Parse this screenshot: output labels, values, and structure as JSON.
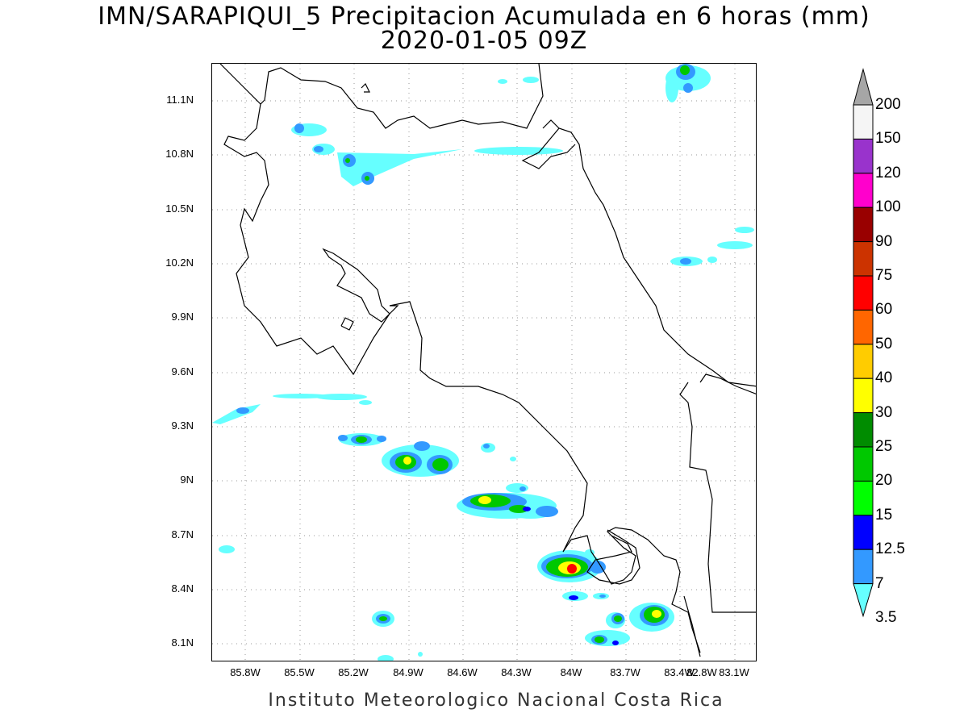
{
  "title": {
    "line1": "IMN/SARAPIQUI_5 Precipitacion Acumulada en 6 horas (mm)",
    "line2": "2020-01-05 09Z"
  },
  "axes": {
    "y_ticks": [
      "11.1N",
      "10.8N",
      "10.5N",
      "10.2N",
      "9.9N",
      "9.6N",
      "9.3N",
      "9N",
      "8.7N",
      "8.4N",
      "8.1N"
    ],
    "x_ticks": [
      "85.8W",
      "85.5W",
      "85.2W",
      "84.9W",
      "84.6W",
      "84.3W",
      "84W",
      "83.7W",
      "83.4W",
      "83.1W",
      "82.8W"
    ]
  },
  "colorbar": {
    "labels": [
      "200",
      "150",
      "120",
      "100",
      "90",
      "75",
      "60",
      "50",
      "40",
      "30",
      "25",
      "20",
      "15",
      "12.5",
      "7",
      "3.5"
    ],
    "colors": [
      "#a6a6a6",
      "#f5f5f5",
      "#9933cc",
      "#ff00cc",
      "#990000",
      "#cc3300",
      "#ff0000",
      "#ff6600",
      "#ffcc00",
      "#ffff00",
      "#008c00",
      "#00c800",
      "#00ff00",
      "#0000ff",
      "#3399ff",
      "#66ffff"
    ]
  },
  "footer": "Instituto Meteorologico Nacional Costa Rica"
}
